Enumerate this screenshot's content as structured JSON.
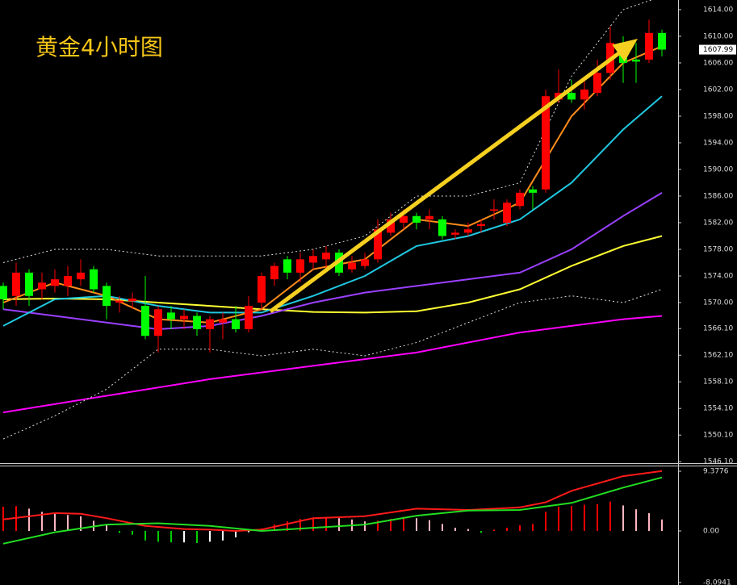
{
  "chart_data": [
    {
      "type": "candlestick",
      "title": "黄金4小时图",
      "title_color": "#f5c518",
      "xlim": [
        -0.25,
        52.25
      ],
      "ylim": [
        1545.76,
        1615.45
      ],
      "yticks": [
        {
          "value": 1614,
          "label": "1614.00"
        },
        {
          "value": 1610,
          "label": "1610.00"
        },
        {
          "value": 1606,
          "label": "1606.00"
        },
        {
          "value": 1602,
          "label": "1602.00"
        },
        {
          "value": 1598,
          "label": "1598.00"
        },
        {
          "value": 1594,
          "label": "1594.00"
        },
        {
          "value": 1590,
          "label": "1590.00"
        },
        {
          "value": 1586,
          "label": "1586.00"
        },
        {
          "value": 1582,
          "label": "1582.00"
        },
        {
          "value": 1578,
          "label": "1578.00"
        },
        {
          "value": 1574,
          "label": "1574.00"
        },
        {
          "value": 1570,
          "label": "1570.00"
        },
        {
          "value": 1566.1,
          "label": "1566.10"
        },
        {
          "value": 1562.1,
          "label": "1562.10"
        },
        {
          "value": 1558.1,
          "label": "1558.10"
        },
        {
          "value": 1554.1,
          "label": "1554.10"
        },
        {
          "value": 1550.1,
          "label": "1550.10"
        },
        {
          "value": 1546.1,
          "label": "1546.10"
        }
      ],
      "current_price": 1607.99,
      "up_color": "#ff0000",
      "down_color": "#00ff00",
      "open": [
        1572.5,
        1571,
        1574.5,
        1572,
        1572.5,
        1572.5,
        1573.5,
        1575,
        1572.5,
        1570,
        1570.2,
        1569.5,
        1565,
        1568.5,
        1567.5,
        1568,
        1566,
        1567,
        1567.5,
        1566,
        1570,
        1573.5,
        1576.5,
        1574.5,
        1576,
        1576.5,
        1577.5,
        1575,
        1575.5,
        1576.5,
        1580.5,
        1582,
        1583,
        1582.5,
        1582.5,
        1580.2,
        1580.5,
        1581.5,
        1583.8,
        1582,
        1584.5,
        1587,
        1587,
        1600.5,
        1601.5,
        1600.5,
        1601.5,
        1604.5,
        1609,
        1606.5,
        1606.5,
        1610.5
      ],
      "high": [
        1573,
        1576,
        1575,
        1574.5,
        1575,
        1575.5,
        1576.5,
        1575.5,
        1573,
        1571,
        1571.5,
        1574,
        1569.5,
        1569.5,
        1569,
        1568.5,
        1568,
        1568.5,
        1569.5,
        1571,
        1574.5,
        1576,
        1577,
        1577.5,
        1578,
        1578.5,
        1578,
        1577,
        1577.5,
        1582.5,
        1583.5,
        1584,
        1583.5,
        1584,
        1583,
        1581,
        1582,
        1582.5,
        1585.5,
        1585.5,
        1587,
        1587.5,
        1602,
        1605,
        1603.5,
        1604,
        1606.5,
        1611.5,
        1610,
        1609,
        1612.5,
        1611
      ],
      "low": [
        1569,
        1569.5,
        1569.5,
        1570.5,
        1571.5,
        1571,
        1572.5,
        1571.5,
        1567.5,
        1568.5,
        1569,
        1564.5,
        1562.5,
        1566,
        1566,
        1565,
        1562.5,
        1564.5,
        1565.5,
        1565.5,
        1569,
        1572.5,
        1573.5,
        1573,
        1575,
        1575,
        1574,
        1574.5,
        1575,
        1576,
        1580,
        1581,
        1581,
        1581,
        1579.5,
        1579.5,
        1580,
        1580.5,
        1582.5,
        1581.5,
        1584,
        1584,
        1586.5,
        1600,
        1600,
        1599,
        1601,
        1603.5,
        1603,
        1603,
        1606,
        1607
      ],
      "close": [
        1570.5,
        1574.5,
        1571,
        1573,
        1573.5,
        1574,
        1574.5,
        1572,
        1569.5,
        1570.3,
        1570.6,
        1565,
        1569,
        1567.5,
        1568,
        1566,
        1567.5,
        1567.5,
        1566,
        1569.5,
        1574,
        1575.5,
        1574.5,
        1576.5,
        1577,
        1577.5,
        1574.5,
        1576,
        1576.5,
        1581,
        1582.5,
        1583,
        1582,
        1583,
        1580,
        1580.5,
        1581,
        1581.8,
        1584,
        1585,
        1586.5,
        1586.5,
        1601,
        1601.5,
        1600.5,
        1602,
        1604.5,
        1609,
        1606,
        1606.2,
        1610.5,
        1608
      ],
      "series": [
        {
          "color": "#ff00ff",
          "style": "solid",
          "x": [
            0,
            8,
            16,
            24,
            32,
            40,
            48,
            51
          ],
          "values": [
            1553.5,
            1556,
            1558.5,
            1560.5,
            1562.5,
            1565.5,
            1567.5,
            1568
          ]
        },
        {
          "color": "#ffff33",
          "style": "solid",
          "x": [
            0,
            4,
            8,
            12,
            16,
            20,
            24,
            28,
            32,
            36,
            40,
            44,
            48,
            51
          ],
          "values": [
            1570.5,
            1570.6,
            1570.5,
            1570,
            1569.5,
            1569,
            1568.6,
            1568.5,
            1568.7,
            1570,
            1572,
            1575.5,
            1578.5,
            1580
          ]
        },
        {
          "color": "#9a40ff",
          "style": "solid",
          "x": [
            0,
            4,
            8,
            12,
            16,
            20,
            24,
            28,
            32,
            36,
            40,
            44,
            48,
            51
          ],
          "values": [
            1569,
            1568,
            1567,
            1566,
            1566.5,
            1568,
            1570,
            1571.5,
            1572.5,
            1573.5,
            1574.5,
            1578,
            1583,
            1586.5
          ]
        },
        {
          "color": "#20c8e0",
          "style": "solid",
          "x": [
            0,
            4,
            8,
            12,
            16,
            20,
            24,
            28,
            32,
            36,
            40,
            44,
            48,
            51
          ],
          "values": [
            1566.5,
            1570.5,
            1571,
            1569.5,
            1568.5,
            1568.5,
            1571,
            1574,
            1578.5,
            1580,
            1582.5,
            1588,
            1596,
            1601
          ]
        },
        {
          "color": "#ff8c1a",
          "style": "solid",
          "x": [
            0,
            4,
            8,
            12,
            16,
            20,
            24,
            28,
            32,
            36,
            40,
            44,
            48,
            51
          ],
          "values": [
            1570,
            1573,
            1571,
            1567.5,
            1567,
            1569,
            1575,
            1576.5,
            1582.5,
            1581.5,
            1585,
            1598,
            1606,
            1608.5
          ]
        },
        {
          "color": "#dddddd",
          "style": "dotted",
          "x": [
            0,
            4,
            8,
            12,
            16,
            20,
            24,
            28,
            32,
            36,
            40,
            44,
            48,
            51
          ],
          "values": [
            1576,
            1578,
            1578,
            1577,
            1577,
            1577,
            1578,
            1580,
            1586,
            1586,
            1588,
            1604,
            1614,
            1616
          ]
        },
        {
          "color": "#dddddd",
          "style": "dotted",
          "x": [
            0,
            4,
            8,
            12,
            16,
            20,
            24,
            28,
            32,
            36,
            40,
            44,
            48,
            51
          ],
          "values": [
            1549.5,
            1553,
            1557,
            1563,
            1563,
            1562,
            1563,
            1562,
            1564,
            1567,
            1570,
            1571,
            1570,
            1572
          ]
        }
      ]
    },
    {
      "type": "macd",
      "xlim": [
        -0.25,
        52.25
      ],
      "ylim": [
        -8.491,
        10.138
      ],
      "yticks": [
        9.3776,
        {
          "value": 0,
          "label": "0.00"
        },
        -8.0941
      ],
      "hist_colors": {
        "up_rise": "#ff0000",
        "up_fall": "#ffb6c1",
        "down_fall": "#00cc00",
        "down_rise": "#ffffff"
      },
      "histogram": [
        3.8,
        3.9,
        3.5,
        3.0,
        2.8,
        2.5,
        2.3,
        1.6,
        1.0,
        -0.3,
        -0.6,
        -1.5,
        -1.7,
        -1.8,
        -1.8,
        -1.9,
        -1.7,
        -1.5,
        -1.0,
        -0.2,
        0.4,
        1.0,
        1.5,
        1.9,
        2.1,
        2.2,
        2.0,
        1.8,
        1.5,
        1.6,
        1.9,
        2.2,
        2.0,
        1.7,
        1.1,
        0.5,
        0.3,
        -0.3,
        0.2,
        0.5,
        0.9,
        1.1,
        3.0,
        3.8,
        3.9,
        4.1,
        4.2,
        4.6,
        4.0,
        3.4,
        2.8,
        1.8
      ],
      "series": [
        {
          "color": "#ff1a1a",
          "style": "solid",
          "x": [
            0,
            4,
            6,
            8,
            11,
            14,
            16,
            18,
            20,
            24,
            28,
            32,
            36,
            40,
            42,
            44,
            48,
            51
          ],
          "values": [
            1.8,
            2.8,
            2.7,
            2.0,
            0.8,
            0.3,
            0.2,
            0.0,
            0.2,
            2.0,
            2.3,
            3.5,
            3.3,
            3.7,
            4.5,
            6.3,
            8.6,
            9.4
          ]
        },
        {
          "color": "#22dd22",
          "style": "solid",
          "x": [
            0,
            4,
            8,
            12,
            16,
            20,
            24,
            28,
            32,
            36,
            40,
            44,
            48,
            51
          ],
          "values": [
            -2.0,
            -0.2,
            1.0,
            1.2,
            0.8,
            0.0,
            0.5,
            1.0,
            2.4,
            3.2,
            3.3,
            4.4,
            6.8,
            8.4
          ]
        }
      ]
    }
  ]
}
